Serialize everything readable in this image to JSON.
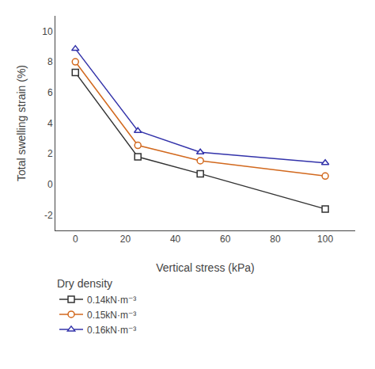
{
  "chart_data": {
    "type": "line",
    "xlabel": "Vertical stress (kPa)",
    "ylabel": "Total swelling strain (%)",
    "legend_title": "Dry density",
    "x": [
      0,
      25,
      50,
      100
    ],
    "series": [
      {
        "name": "0.14kN·m⁻³",
        "color": "#333333",
        "values": [
          7.3,
          1.8,
          0.7,
          -1.6
        ],
        "marker": "square",
        "line_style": "solid"
      },
      {
        "name": "0.15kN·m⁻³",
        "color": "#d2691e",
        "values": [
          8.0,
          2.55,
          1.55,
          0.55
        ],
        "marker": "circle",
        "line_style": "solid"
      },
      {
        "name": "0.16kN·m⁻³",
        "color": "#3333aa",
        "values": [
          8.85,
          3.5,
          2.1,
          1.4
        ],
        "marker": "triangle-up",
        "line_style": "solid"
      }
    ],
    "xlim": [
      -8,
      112
    ],
    "ylim": [
      -3,
      11
    ],
    "xticks": [
      0,
      20,
      40,
      60,
      80,
      100
    ],
    "yticks": [
      -2,
      0,
      2,
      4,
      6,
      8,
      10
    ],
    "grid": false,
    "legend": "bottom"
  }
}
